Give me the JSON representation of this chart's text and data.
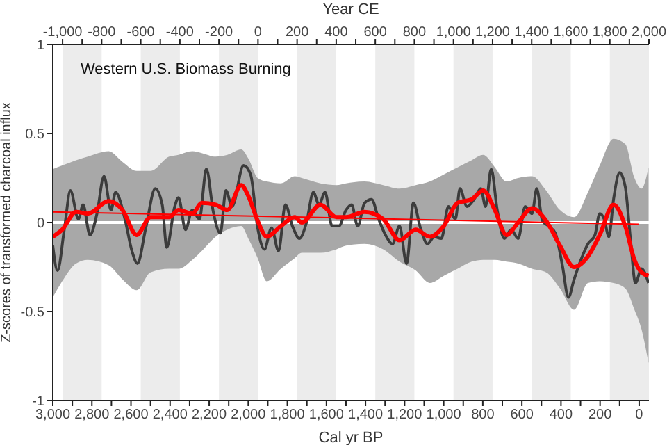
{
  "chart_data": {
    "type": "line",
    "title": "Western U.S. Biomass Burning",
    "xlabel": "Cal yr BP",
    "ylabel": "Z-scores of transformed charcoal influx",
    "x2label": "Year CE",
    "xlim": [
      3000,
      -50
    ],
    "xticks": [
      {
        "value": 3000,
        "label": "3,000"
      },
      {
        "value": 2900,
        "label": null
      },
      {
        "value": 2800,
        "label": "2,800"
      },
      {
        "value": 2700,
        "label": null
      },
      {
        "value": 2600,
        "label": "2,600"
      },
      {
        "value": 2500,
        "label": null
      },
      {
        "value": 2400,
        "label": "2,400"
      },
      {
        "value": 2300,
        "label": null
      },
      {
        "value": 2200,
        "label": "2,200"
      },
      {
        "value": 2100,
        "label": null
      },
      {
        "value": 2000,
        "label": "2,000"
      },
      {
        "value": 1900,
        "label": null
      },
      {
        "value": 1800,
        "label": "1,800"
      },
      {
        "value": 1700,
        "label": null
      },
      {
        "value": 1600,
        "label": "1,600"
      },
      {
        "value": 1500,
        "label": null
      },
      {
        "value": 1400,
        "label": "1,400"
      },
      {
        "value": 1300,
        "label": null
      },
      {
        "value": 1200,
        "label": "1,200"
      },
      {
        "value": 1100,
        "label": null
      },
      {
        "value": 1000,
        "label": "1,000"
      },
      {
        "value": 900,
        "label": null
      },
      800,
      {
        "value": 700,
        "label": null
      },
      600,
      {
        "value": 500,
        "label": null
      },
      400,
      {
        "value": 300,
        "label": null
      },
      200,
      {
        "value": 100,
        "label": null
      },
      0
    ],
    "x2lim": [
      -1050,
      2000
    ],
    "x2ticks": [
      {
        "value": -1000,
        "label": "-1,000"
      },
      {
        "value": -900,
        "label": null
      },
      -800,
      {
        "value": -700,
        "label": null
      },
      -600,
      {
        "value": -500,
        "label": null
      },
      -400,
      {
        "value": -300,
        "label": null
      },
      -200,
      {
        "value": -100,
        "label": null
      },
      0,
      {
        "value": 100,
        "label": null
      },
      200,
      {
        "value": 300,
        "label": null
      },
      400,
      {
        "value": 500,
        "label": null
      },
      600,
      {
        "value": 700,
        "label": null
      },
      800,
      {
        "value": 900,
        "label": null
      },
      {
        "value": 1000,
        "label": "1,000"
      },
      {
        "value": 1100,
        "label": null
      },
      {
        "value": 1200,
        "label": "1,200"
      },
      {
        "value": 1300,
        "label": null
      },
      {
        "value": 1400,
        "label": "1,400"
      },
      {
        "value": 1500,
        "label": null
      },
      {
        "value": 1600,
        "label": "1,600"
      },
      {
        "value": 1700,
        "label": null
      },
      {
        "value": 1800,
        "label": "1,800"
      },
      {
        "value": 1900,
        "label": null
      },
      {
        "value": 2000,
        "label": "2,000"
      }
    ],
    "ylim": [
      -1,
      1
    ],
    "yticks": [
      -1,
      -0.5,
      0,
      0.5,
      1
    ],
    "marker": "none",
    "line_style": "solid",
    "bands": [
      {
        "axis": "x",
        "from": 2950,
        "to": 2750,
        "color": "#ececec"
      },
      {
        "axis": "x",
        "from": 2550,
        "to": 2350,
        "color": "#ececec"
      },
      {
        "axis": "x",
        "from": 2150,
        "to": 1950,
        "color": "#ececec"
      },
      {
        "axis": "x",
        "from": 1750,
        "to": 1550,
        "color": "#ececec"
      },
      {
        "axis": "x",
        "from": 1350,
        "to": 1150,
        "color": "#ececec"
      },
      {
        "axis": "x",
        "from": 950,
        "to": 750,
        "color": "#ececec"
      },
      {
        "axis": "x",
        "from": 550,
        "to": 350,
        "color": "#ececec"
      },
      {
        "axis": "x",
        "from": 150,
        "to": -50,
        "color": "#ececec"
      }
    ],
    "ref_lines": [
      {
        "axis": "y",
        "value": 0,
        "color": "#ffffff"
      }
    ],
    "series": [
      {
        "color": "#3c3c3c",
        "x": [
          3000,
          2976,
          2940,
          2910,
          2869,
          2845,
          2810,
          2774,
          2738,
          2702,
          2679,
          2631,
          2595,
          2567,
          2524,
          2476,
          2440,
          2417,
          2376,
          2357,
          2321,
          2286,
          2250,
          2214,
          2179,
          2143,
          2114,
          2083,
          2024,
          1988,
          1952,
          1917,
          1881,
          1845,
          1810,
          1774,
          1738,
          1702,
          1667,
          1638,
          1607,
          1571,
          1536,
          1500,
          1471,
          1440,
          1405,
          1369,
          1333,
          1298,
          1262,
          1226,
          1190,
          1155,
          1119,
          1083,
          1048,
          1012,
          976,
          940,
          917,
          881,
          845,
          810,
          786,
          757,
          726,
          690,
          655,
          619,
          583,
          548,
          524,
          495,
          464,
          429,
          393,
          362,
          333,
          298,
          262,
          226,
          202,
          179,
          155,
          131,
          100,
          71,
          43,
          19,
          -12,
          -48
        ],
        "values": [
          -0.13,
          -0.27,
          -0.03,
          0.18,
          0.02,
          0.1,
          -0.07,
          0.05,
          0.26,
          0.07,
          0.17,
          0.02,
          -0.16,
          -0.23,
          -0.03,
          0.19,
          0.1,
          -0.14,
          0.09,
          0.14,
          -0.04,
          0.07,
          0.02,
          0.3,
          0.06,
          -0.06,
          0.18,
          0.09,
          0.32,
          0.27,
          -0.03,
          -0.15,
          -0.03,
          -0.16,
          0.1,
          -0.02,
          -0.09,
          0,
          0.17,
          0.1,
          0.17,
          -0.02,
          -0.02,
          0.07,
          0.1,
          -0.02,
          0.11,
          0.13,
          0.02,
          -0.07,
          -0.12,
          -0.02,
          -0.23,
          0.11,
          -0.03,
          -0.12,
          -0.08,
          -0.09,
          0.09,
          0.02,
          0.19,
          0.09,
          0.13,
          0.19,
          0.09,
          0.3,
          0.07,
          -0.09,
          -0.04,
          -0.09,
          0.09,
          0.05,
          0.19,
          0.01,
          -0.02,
          -0.06,
          -0.24,
          -0.42,
          -0.32,
          -0.21,
          -0.12,
          -0.07,
          0.05,
          0.02,
          -0.08,
          0.13,
          0.28,
          0.2,
          -0.11,
          -0.34,
          -0.26,
          -0.34
        ]
      },
      {
        "color": "#ff0000",
        "x": [
          3000,
          0
        ],
        "values": [
          0.06,
          -0.01
        ]
      },
      {
        "color": "#ff0000",
        "x": [
          3000,
          2952,
          2881,
          2821,
          2714,
          2643,
          2571,
          2500,
          2405,
          2357,
          2286,
          2238,
          2167,
          2107,
          2036,
          2000,
          1952,
          1905,
          1833,
          1762,
          1726,
          1631,
          1548,
          1500,
          1405,
          1310,
          1226,
          1143,
          1071,
          1000,
          929,
          857,
          798,
          738,
          679,
          619,
          548,
          476,
          405,
          333,
          262,
          202,
          131,
          71,
          24,
          -12,
          -48
        ],
        "values": [
          -0.08,
          -0.04,
          0.06,
          0.05,
          0.12,
          0.07,
          -0.07,
          0.03,
          0.03,
          0.07,
          0.05,
          0.11,
          0.1,
          0.07,
          0.21,
          0.15,
          0.01,
          -0.08,
          -0.02,
          0.03,
          0,
          0.1,
          0.03,
          0.03,
          0.06,
          0.02,
          -0.1,
          -0.04,
          -0.08,
          -0.02,
          0.11,
          0.13,
          0.18,
          0.07,
          -0.07,
          0,
          0.08,
          0.01,
          -0.13,
          -0.25,
          -0.19,
          -0.07,
          0.1,
          -0.02,
          -0.21,
          -0.28,
          -0.3
        ],
        "upper": [
          0.3,
          0.32,
          0.35,
          0.37,
          0.4,
          0.34,
          0.29,
          0.29,
          0.37,
          0.38,
          0.4,
          0.39,
          0.37,
          0.38,
          0.41,
          0.36,
          0.25,
          0.23,
          0.22,
          0.26,
          0.25,
          0.22,
          0.21,
          0.22,
          0.23,
          0.21,
          0.19,
          0.21,
          0.23,
          0.27,
          0.31,
          0.35,
          0.38,
          0.31,
          0.23,
          0.25,
          0.26,
          0.18,
          0.07,
          0.03,
          0.17,
          0.32,
          0.47,
          0.44,
          0.25,
          0.19,
          0.31
        ],
        "lower": [
          -0.42,
          -0.33,
          -0.23,
          -0.21,
          -0.24,
          -0.32,
          -0.38,
          -0.28,
          -0.26,
          -0.26,
          -0.21,
          -0.16,
          -0.08,
          -0.04,
          -0.02,
          -0.09,
          -0.2,
          -0.33,
          -0.26,
          -0.2,
          -0.17,
          -0.17,
          -0.15,
          -0.13,
          -0.12,
          -0.15,
          -0.22,
          -0.27,
          -0.34,
          -0.3,
          -0.26,
          -0.22,
          -0.21,
          -0.21,
          -0.22,
          -0.23,
          -0.26,
          -0.28,
          -0.37,
          -0.49,
          -0.34,
          -0.33,
          -0.34,
          -0.37,
          -0.49,
          -0.6,
          -0.79
        ]
      }
    ]
  }
}
